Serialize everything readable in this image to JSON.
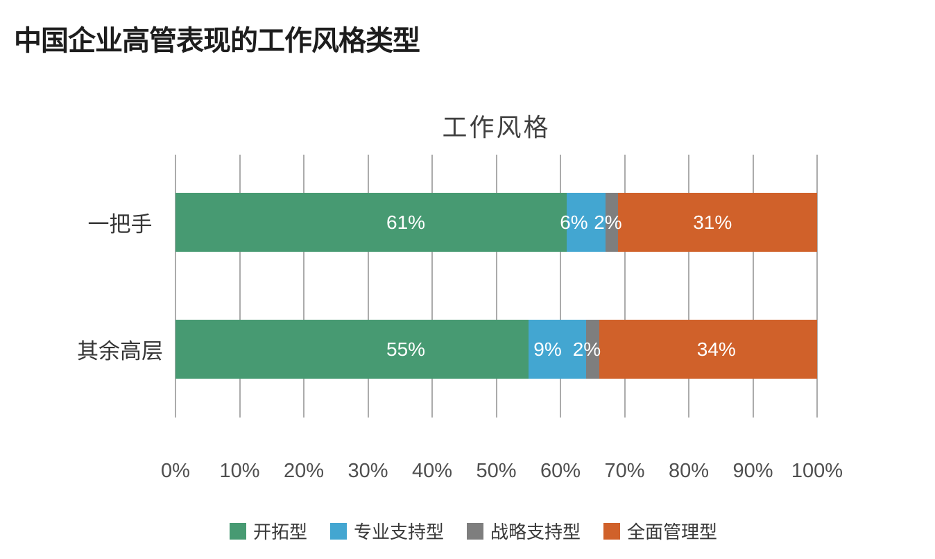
{
  "page": {
    "title": "中国企业高管表现的工作风格类型"
  },
  "chart_data": {
    "type": "bar",
    "orientation": "horizontal",
    "stacked": true,
    "title": "工作风格",
    "categories": [
      "一把手",
      "其余高层"
    ],
    "series": [
      {
        "name": "开拓型",
        "color": "#479A72",
        "values": [
          61,
          55
        ]
      },
      {
        "name": "专业支持型",
        "color": "#43A6D1",
        "values": [
          6,
          9
        ]
      },
      {
        "name": "战略支持型",
        "color": "#7E7E7E",
        "values": [
          2,
          2
        ]
      },
      {
        "name": "全面管理型",
        "color": "#D0612A",
        "values": [
          31,
          34
        ]
      }
    ],
    "data_labels": [
      [
        {
          "text": "61%",
          "x_pct": 35.9
        },
        {
          "text": "6%",
          "x_pct": 62.1
        },
        {
          "text": "2%",
          "x_pct": 67.4
        },
        {
          "text": "31%",
          "x_pct": 83.7
        }
      ],
      [
        {
          "text": "55%",
          "x_pct": 35.9
        },
        {
          "text": "9%",
          "x_pct": 58.0
        },
        {
          "text": "2%",
          "x_pct": 64.1
        },
        {
          "text": "34%",
          "x_pct": 84.3
        }
      ]
    ],
    "x_ticks": [
      "0%",
      "10%",
      "20%",
      "30%",
      "40%",
      "50%",
      "60%",
      "70%",
      "80%",
      "90%",
      "100%"
    ],
    "xlim": [
      0,
      100
    ],
    "grid": true,
    "gridline_color": "#ababab",
    "data_label_color": "#ffffff",
    "legend_position": "bottom"
  }
}
